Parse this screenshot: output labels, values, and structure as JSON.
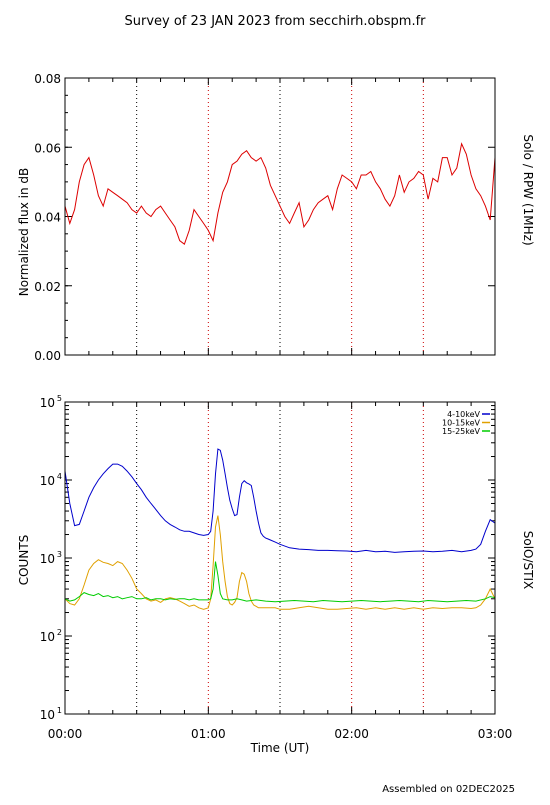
{
  "page": {
    "title": "Survey of 23 JAN 2023 from secchirh.obspm.fr",
    "footer": "Assembled on 02DEC2025"
  },
  "chart_data": [
    {
      "type": "line",
      "ylabel": "Normalized flux in dB",
      "right_label": "Solo / RPW (1MHz)",
      "xlim": [
        0,
        180
      ],
      "ylim": [
        0,
        0.08
      ],
      "yticks": [
        0.0,
        0.02,
        0.04,
        0.06,
        0.08
      ],
      "ytick_labels": [
        "0.00",
        "0.02",
        "0.04",
        "0.06",
        "0.08"
      ],
      "xticks": [
        0,
        60,
        120,
        180
      ],
      "vlines": [
        30,
        60,
        90,
        120,
        150
      ],
      "vline_colors": [
        "#000000",
        "#cc0000",
        "#000000",
        "#cc0000",
        "#cc0000"
      ],
      "series": [
        {
          "color": "#dd0000",
          "x": [
            0,
            2,
            4,
            6,
            8,
            10,
            12,
            14,
            16,
            18,
            20,
            22,
            24,
            26,
            28,
            30,
            32,
            34,
            36,
            38,
            40,
            42,
            44,
            46,
            48,
            50,
            52,
            54,
            56,
            58,
            60,
            62,
            64,
            66,
            68,
            70,
            72,
            74,
            76,
            78,
            80,
            82,
            84,
            86,
            88,
            90,
            92,
            94,
            96,
            98,
            100,
            102,
            104,
            106,
            108,
            110,
            112,
            114,
            116,
            118,
            120,
            122,
            124,
            126,
            128,
            130,
            132,
            134,
            136,
            138,
            140,
            142,
            144,
            146,
            148,
            150,
            152,
            154,
            156,
            158,
            160,
            162,
            164,
            166,
            168,
            170,
            172,
            174,
            176,
            178,
            180
          ],
          "y": [
            0.043,
            0.038,
            0.042,
            0.05,
            0.055,
            0.057,
            0.052,
            0.046,
            0.043,
            0.048,
            0.047,
            0.046,
            0.045,
            0.044,
            0.042,
            0.041,
            0.043,
            0.041,
            0.04,
            0.042,
            0.043,
            0.041,
            0.039,
            0.037,
            0.033,
            0.032,
            0.036,
            0.042,
            0.04,
            0.038,
            0.036,
            0.033,
            0.041,
            0.047,
            0.05,
            0.055,
            0.056,
            0.058,
            0.059,
            0.057,
            0.056,
            0.057,
            0.054,
            0.049,
            0.046,
            0.043,
            0.04,
            0.038,
            0.041,
            0.044,
            0.037,
            0.039,
            0.042,
            0.044,
            0.045,
            0.046,
            0.042,
            0.048,
            0.052,
            0.051,
            0.05,
            0.048,
            0.052,
            0.052,
            0.053,
            0.05,
            0.048,
            0.045,
            0.043,
            0.046,
            0.052,
            0.047,
            0.05,
            0.051,
            0.053,
            0.052,
            0.045,
            0.051,
            0.05,
            0.057,
            0.057,
            0.052,
            0.054,
            0.061,
            0.058,
            0.052,
            0.048,
            0.046,
            0.043,
            0.039,
            0.057
          ]
        }
      ]
    },
    {
      "type": "line",
      "xlabel": "Time (UT)",
      "ylabel": "COUNTS",
      "right_label": "SolO/STIX",
      "scale": "log",
      "xlim": [
        0,
        180
      ],
      "ylim": [
        10,
        100000
      ],
      "yticks": [
        10,
        100,
        1000,
        10000,
        100000
      ],
      "ytick_labels": [
        [
          "10",
          "1"
        ],
        [
          "10",
          "2"
        ],
        [
          "10",
          "3"
        ],
        [
          "10",
          "4"
        ],
        [
          "10",
          "5"
        ]
      ],
      "xticks": [
        0,
        60,
        120,
        180
      ],
      "xtick_labels": [
        "00:00",
        "01:00",
        "02:00",
        "03:00"
      ],
      "vlines": [
        30,
        60,
        90,
        120,
        150
      ],
      "vline_colors": [
        "#000000",
        "#cc0000",
        "#000000",
        "#cc0000",
        "#cc0000"
      ],
      "legend": "top-right",
      "series": [
        {
          "name": "4-10keV",
          "color": "#0000cc",
          "x": [
            0,
            2,
            4,
            6,
            8,
            10,
            12,
            14,
            16,
            18,
            20,
            22,
            24,
            26,
            28,
            30,
            32,
            34,
            36,
            38,
            40,
            42,
            44,
            46,
            48,
            50,
            52,
            54,
            56,
            58,
            60,
            61,
            62,
            63,
            64,
            65,
            66,
            67,
            68,
            69,
            70,
            71,
            72,
            73,
            74,
            75,
            76,
            77,
            78,
            79,
            80,
            81,
            82,
            83,
            84,
            85,
            86,
            88,
            90,
            94,
            98,
            102,
            106,
            110,
            114,
            118,
            122,
            126,
            130,
            134,
            138,
            142,
            146,
            150,
            154,
            158,
            162,
            166,
            170,
            172,
            174,
            176,
            178,
            180
          ],
          "y": [
            13000,
            5000,
            2600,
            2700,
            4000,
            6000,
            8000,
            10000,
            12000,
            14000,
            16000,
            16000,
            15000,
            13000,
            11000,
            9000,
            7500,
            6000,
            5000,
            4200,
            3500,
            3000,
            2700,
            2500,
            2300,
            2200,
            2200,
            2100,
            2000,
            1950,
            2000,
            2200,
            4000,
            12000,
            25000,
            24000,
            18000,
            12000,
            8000,
            5500,
            4300,
            3500,
            3600,
            6000,
            9000,
            9800,
            9200,
            8900,
            8500,
            6000,
            4000,
            2800,
            2100,
            1900,
            1800,
            1750,
            1700,
            1600,
            1500,
            1350,
            1300,
            1280,
            1250,
            1250,
            1240,
            1230,
            1200,
            1250,
            1200,
            1220,
            1180,
            1200,
            1220,
            1230,
            1200,
            1220,
            1250,
            1200,
            1250,
            1300,
            1500,
            2200,
            3100,
            2800
          ]
        },
        {
          "name": "10-15keV",
          "color": "#e0a000",
          "x": [
            0,
            2,
            4,
            6,
            8,
            10,
            12,
            14,
            16,
            18,
            20,
            22,
            24,
            26,
            28,
            30,
            32,
            34,
            36,
            38,
            40,
            42,
            44,
            46,
            48,
            50,
            52,
            54,
            56,
            58,
            60,
            61,
            62,
            63,
            64,
            65,
            66,
            67,
            68,
            69,
            70,
            71,
            72,
            73,
            74,
            75,
            76,
            77,
            78,
            79,
            80,
            81,
            82,
            84,
            86,
            88,
            90,
            94,
            98,
            102,
            106,
            110,
            114,
            118,
            122,
            126,
            130,
            134,
            138,
            142,
            146,
            150,
            154,
            158,
            162,
            166,
            170,
            172,
            174,
            176,
            178,
            180
          ],
          "y": [
            300,
            260,
            250,
            300,
            450,
            700,
            850,
            950,
            880,
            850,
            800,
            900,
            850,
            700,
            550,
            400,
            350,
            300,
            280,
            290,
            270,
            300,
            310,
            300,
            280,
            260,
            240,
            250,
            230,
            220,
            230,
            300,
            800,
            2500,
            3500,
            2000,
            900,
            500,
            320,
            260,
            250,
            270,
            310,
            500,
            650,
            620,
            500,
            350,
            280,
            250,
            240,
            230,
            230,
            230,
            230,
            230,
            220,
            220,
            230,
            240,
            230,
            220,
            220,
            225,
            230,
            220,
            230,
            220,
            230,
            220,
            230,
            220,
            230,
            225,
            230,
            230,
            225,
            230,
            250,
            300,
            400,
            300
          ]
        },
        {
          "name": "15-25keV",
          "color": "#00cc00",
          "x": [
            0,
            2,
            4,
            6,
            8,
            10,
            12,
            14,
            16,
            18,
            20,
            22,
            24,
            26,
            28,
            30,
            32,
            34,
            36,
            38,
            40,
            42,
            44,
            46,
            48,
            50,
            52,
            54,
            56,
            58,
            60,
            61,
            62,
            63,
            64,
            65,
            66,
            68,
            70,
            72,
            74,
            76,
            78,
            80,
            84,
            88,
            92,
            96,
            100,
            104,
            108,
            112,
            116,
            120,
            124,
            128,
            132,
            136,
            140,
            144,
            148,
            152,
            156,
            160,
            164,
            168,
            172,
            176,
            178,
            180
          ],
          "y": [
            300,
            280,
            290,
            320,
            360,
            340,
            330,
            350,
            320,
            330,
            310,
            320,
            300,
            310,
            320,
            300,
            300,
            310,
            290,
            300,
            300,
            290,
            300,
            295,
            300,
            300,
            290,
            300,
            290,
            290,
            290,
            300,
            400,
            900,
            600,
            350,
            300,
            290,
            290,
            300,
            290,
            280,
            285,
            290,
            280,
            275,
            280,
            285,
            280,
            275,
            285,
            280,
            275,
            280,
            285,
            280,
            275,
            280,
            285,
            280,
            275,
            285,
            280,
            275,
            280,
            285,
            280,
            300,
            320,
            310
          ]
        }
      ]
    }
  ]
}
